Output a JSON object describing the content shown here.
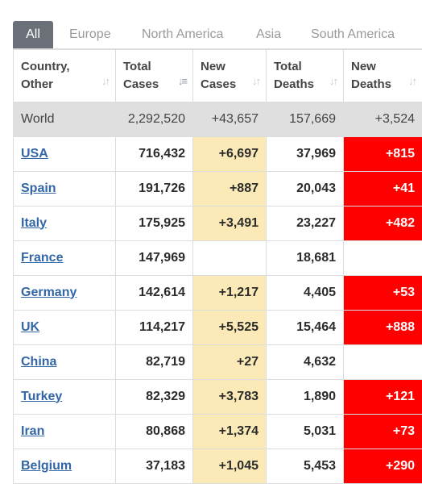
{
  "tabs": [
    "All",
    "Europe",
    "North America",
    "Asia",
    "South America"
  ],
  "headers": [
    {
      "line1": "Country,",
      "line2": "Other"
    },
    {
      "line1": "Total",
      "line2": "Cases"
    },
    {
      "line1": "New",
      "line2": "Cases"
    },
    {
      "line1": "Total",
      "line2": "Deaths"
    },
    {
      "line1": "New",
      "line2": "Deaths"
    }
  ],
  "world": {
    "country": "World",
    "total_cases": "2,292,520",
    "new_cases": "+43,657",
    "total_deaths": "157,669",
    "new_deaths": "+3,524"
  },
  "rows": [
    {
      "country": "USA",
      "total_cases": "716,432",
      "new_cases": "+6,697",
      "total_deaths": "37,969",
      "new_deaths": "+815"
    },
    {
      "country": "Spain",
      "total_cases": "191,726",
      "new_cases": "+887",
      "total_deaths": "20,043",
      "new_deaths": "+41"
    },
    {
      "country": "Italy",
      "total_cases": "175,925",
      "new_cases": "+3,491",
      "total_deaths": "23,227",
      "new_deaths": "+482"
    },
    {
      "country": "France",
      "total_cases": "147,969",
      "new_cases": "",
      "total_deaths": "18,681",
      "new_deaths": ""
    },
    {
      "country": "Germany",
      "total_cases": "142,614",
      "new_cases": "+1,217",
      "total_deaths": "4,405",
      "new_deaths": "+53"
    },
    {
      "country": "UK",
      "total_cases": "114,217",
      "new_cases": "+5,525",
      "total_deaths": "15,464",
      "new_deaths": "+888"
    },
    {
      "country": "China",
      "total_cases": "82,719",
      "new_cases": "+27",
      "total_deaths": "4,632",
      "new_deaths": ""
    },
    {
      "country": "Turkey",
      "total_cases": "82,329",
      "new_cases": "+3,783",
      "total_deaths": "1,890",
      "new_deaths": "+121"
    },
    {
      "country": "Iran",
      "total_cases": "80,868",
      "new_cases": "+1,374",
      "total_deaths": "5,031",
      "new_deaths": "+73"
    },
    {
      "country": "Belgium",
      "total_cases": "37,183",
      "new_cases": "+1,045",
      "total_deaths": "5,453",
      "new_deaths": "+290"
    }
  ],
  "colors": {
    "active_tab": "#6b7078",
    "new_cases_fill": "#fbeab7",
    "new_deaths_fill": "#ff0000",
    "country_link": "#3366a6",
    "world_row": "#dfdfdf"
  },
  "icons": {
    "sort": "sort-arrows-icon",
    "sorted_desc": "sort-desc-icon"
  }
}
